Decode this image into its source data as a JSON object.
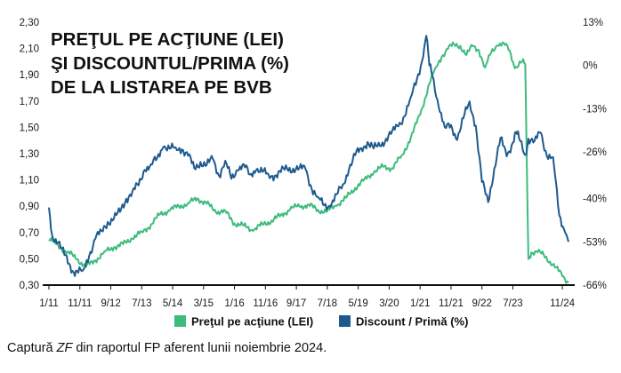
{
  "chart_data": {
    "type": "line",
    "title_lines": [
      "PREŢUL PE ACŢIUNE (LEI)",
      "ŞI DISCOUNTUL/PRIMA (%)",
      "DE LA LISTAREA PE BVB"
    ],
    "x_labels": [
      "1/11",
      "11/11",
      "9/12",
      "7/13",
      "5/14",
      "3/15",
      "1/16",
      "11/16",
      "9/17",
      "7/18",
      "5/19",
      "3/20",
      "1/21",
      "11/21",
      "9/22",
      "7/23",
      "11/24"
    ],
    "x_ticks": [
      0,
      10,
      20,
      30,
      40,
      50,
      60,
      70,
      80,
      90,
      100,
      110,
      120,
      130,
      140,
      150,
      166
    ],
    "x_range": [
      0,
      170
    ],
    "y_left": {
      "ticks": [
        "2,30",
        "2,10",
        "1,90",
        "1,70",
        "1,50",
        "1,30",
        "1,10",
        "0,90",
        "0,70",
        "0,50",
        "0,30"
      ],
      "range": [
        0.3,
        2.3
      ]
    },
    "y_right": {
      "ticks": [
        "13%",
        "0%",
        "-13%",
        "-26%",
        "-40%",
        "-53%",
        "-66%"
      ],
      "values": [
        13,
        0,
        -13,
        -26,
        -40,
        -53,
        -66
      ],
      "range": [
        -66,
        13
      ]
    },
    "series": [
      {
        "name": "Preţul pe acţiune (LEI)",
        "axis": "left",
        "color": "#3dbc7c",
        "points": [
          [
            0,
            0.65
          ],
          [
            3,
            0.6
          ],
          [
            6,
            0.55
          ],
          [
            9,
            0.5
          ],
          [
            12,
            0.44
          ],
          [
            15,
            0.49
          ],
          [
            18,
            0.55
          ],
          [
            21,
            0.59
          ],
          [
            24,
            0.61
          ],
          [
            27,
            0.66
          ],
          [
            30,
            0.7
          ],
          [
            33,
            0.76
          ],
          [
            36,
            0.84
          ],
          [
            39,
            0.87
          ],
          [
            42,
            0.9
          ],
          [
            45,
            0.92
          ],
          [
            48,
            0.96
          ],
          [
            51,
            0.92
          ],
          [
            54,
            0.86
          ],
          [
            57,
            0.86
          ],
          [
            60,
            0.77
          ],
          [
            63,
            0.75
          ],
          [
            66,
            0.72
          ],
          [
            69,
            0.76
          ],
          [
            72,
            0.79
          ],
          [
            75,
            0.83
          ],
          [
            78,
            0.88
          ],
          [
            81,
            0.9
          ],
          [
            84,
            0.91
          ],
          [
            87,
            0.87
          ],
          [
            90,
            0.86
          ],
          [
            93,
            0.91
          ],
          [
            96,
            0.96
          ],
          [
            99,
            1.04
          ],
          [
            102,
            1.1
          ],
          [
            105,
            1.16
          ],
          [
            108,
            1.2
          ],
          [
            111,
            1.19
          ],
          [
            114,
            1.28
          ],
          [
            117,
            1.42
          ],
          [
            120,
            1.6
          ],
          [
            123,
            1.83
          ],
          [
            125,
            1.95
          ],
          [
            127,
            2.04
          ],
          [
            129,
            2.1
          ],
          [
            131,
            2.13
          ],
          [
            133,
            2.12
          ],
          [
            135,
            2.05
          ],
          [
            137,
            2.12
          ],
          [
            139,
            2.09
          ],
          [
            141,
            1.95
          ],
          [
            143,
            2.07
          ],
          [
            145,
            2.13
          ],
          [
            147,
            2.14
          ],
          [
            149,
            2.08
          ],
          [
            150,
            2.0
          ],
          [
            151,
            1.96
          ],
          [
            153,
            2.0
          ],
          [
            154,
            1.98
          ],
          [
            155,
            0.5
          ],
          [
            156,
            0.55
          ],
          [
            158,
            0.55
          ],
          [
            160,
            0.53
          ],
          [
            162,
            0.48
          ],
          [
            164,
            0.43
          ],
          [
            166,
            0.37
          ],
          [
            168,
            0.32
          ]
        ]
      },
      {
        "name": "Discount / Primă (%)",
        "axis": "right",
        "color": "#1f5a8e",
        "points": [
          [
            0,
            -43
          ],
          [
            1,
            -51
          ],
          [
            3,
            -53
          ],
          [
            5,
            -57
          ],
          [
            8,
            -62
          ],
          [
            11,
            -62
          ],
          [
            13,
            -57
          ],
          [
            15,
            -52
          ],
          [
            17,
            -50
          ],
          [
            19,
            -47
          ],
          [
            21,
            -46
          ],
          [
            23,
            -44
          ],
          [
            25,
            -40
          ],
          [
            27,
            -38
          ],
          [
            29,
            -36
          ],
          [
            31,
            -31
          ],
          [
            33,
            -30
          ],
          [
            35,
            -28
          ],
          [
            37,
            -24
          ],
          [
            39,
            -25
          ],
          [
            41,
            -25
          ],
          [
            43,
            -25
          ],
          [
            45,
            -27
          ],
          [
            47,
            -31
          ],
          [
            49,
            -29
          ],
          [
            51,
            -30
          ],
          [
            53,
            -28
          ],
          [
            55,
            -33
          ],
          [
            57,
            -29
          ],
          [
            59,
            -34
          ],
          [
            61,
            -31
          ],
          [
            63,
            -30
          ],
          [
            65,
            -33
          ],
          [
            67,
            -31
          ],
          [
            69,
            -32
          ],
          [
            71,
            -33
          ],
          [
            73,
            -33
          ],
          [
            75,
            -32
          ],
          [
            77,
            -31
          ],
          [
            79,
            -31
          ],
          [
            81,
            -31
          ],
          [
            83,
            -31
          ],
          [
            85,
            -37
          ],
          [
            87,
            -40
          ],
          [
            89,
            -42
          ],
          [
            91,
            -42
          ],
          [
            93,
            -39
          ],
          [
            95,
            -36
          ],
          [
            97,
            -31
          ],
          [
            99,
            -27
          ],
          [
            101,
            -25
          ],
          [
            103,
            -23
          ],
          [
            105,
            -25
          ],
          [
            107,
            -24
          ],
          [
            109,
            -22
          ],
          [
            111,
            -20
          ],
          [
            113,
            -18
          ],
          [
            115,
            -15
          ],
          [
            117,
            -10
          ],
          [
            119,
            -4
          ],
          [
            121,
            3
          ],
          [
            122,
            9
          ],
          [
            123,
            0
          ],
          [
            124,
            -3
          ],
          [
            126,
            -12
          ],
          [
            128,
            -19
          ],
          [
            130,
            -18
          ],
          [
            132,
            -22
          ],
          [
            134,
            -16
          ],
          [
            136,
            -11
          ],
          [
            138,
            -18
          ],
          [
            140,
            -35
          ],
          [
            142,
            -41
          ],
          [
            144,
            -31
          ],
          [
            146,
            -22
          ],
          [
            148,
            -27
          ],
          [
            150,
            -23
          ],
          [
            151,
            -20
          ],
          [
            152,
            -22
          ],
          [
            154,
            -27
          ],
          [
            155,
            -22
          ],
          [
            157,
            -23
          ],
          [
            159,
            -20
          ],
          [
            161,
            -27
          ],
          [
            163,
            -28
          ],
          [
            165,
            -45
          ],
          [
            167,
            -50
          ],
          [
            168,
            -53
          ]
        ]
      }
    ]
  },
  "legend": {
    "items": [
      {
        "label": "Preţul pe acţiune (LEI)",
        "color": "#3dbc7c"
      },
      {
        "label": "Discount / Primă (%)",
        "color": "#1f5a8e"
      }
    ]
  },
  "caption": {
    "prefix": "Captură ",
    "source": "ZF",
    "suffix": " din raportul FP aferent lunii noiembrie 2024."
  }
}
